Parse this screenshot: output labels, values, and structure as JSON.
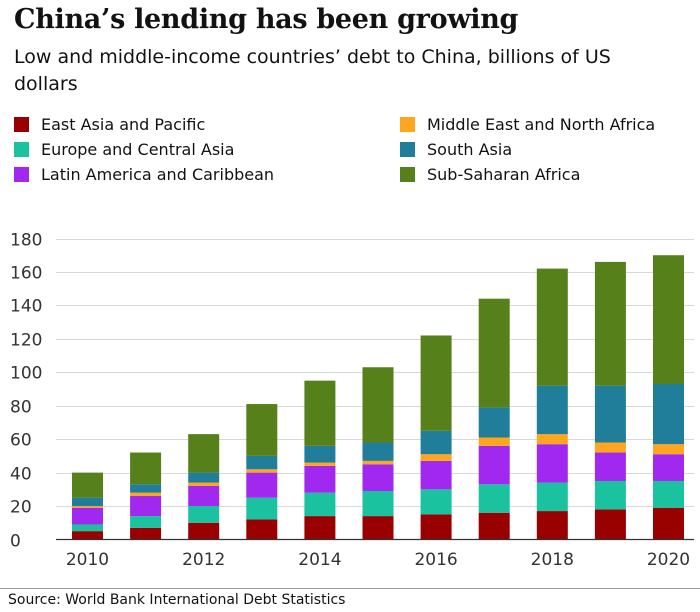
{
  "title": "China’s lending has been growing",
  "subtitle": "Low and middle-income countries’ debt to China, billions of US dollars",
  "source": "Source: World Bank International Debt Statistics",
  "chart_data": {
    "type": "bar",
    "stacked": true,
    "categories": [
      "2010",
      "2011",
      "2012",
      "2013",
      "2014",
      "2015",
      "2016",
      "2017",
      "2018",
      "2019",
      "2020"
    ],
    "x_tick_labels": [
      "2010",
      "2012",
      "2014",
      "2016",
      "2018",
      "2020"
    ],
    "y_ticks": [
      0,
      20,
      40,
      60,
      80,
      100,
      120,
      140,
      160,
      180
    ],
    "ylim": [
      0,
      180
    ],
    "grid": true,
    "legend_position": "top",
    "series": [
      {
        "name": "East Asia and Pacific",
        "color": "#990000",
        "values": [
          5,
          7,
          10,
          12,
          14,
          14,
          15,
          16,
          17,
          18,
          19
        ]
      },
      {
        "name": "Europe and Central Asia",
        "color": "#1bc2a0",
        "values": [
          4,
          7,
          10,
          13,
          14,
          15,
          15,
          17,
          17,
          17,
          16
        ]
      },
      {
        "name": "Latin America and Caribbean",
        "color": "#a128ef",
        "values": [
          10,
          12,
          12,
          15,
          16,
          16,
          17,
          23,
          23,
          17,
          16
        ]
      },
      {
        "name": "Middle East and North Africa",
        "color": "#ffa51e",
        "values": [
          1,
          2,
          2,
          2,
          2,
          2,
          4,
          5,
          6,
          6,
          6
        ]
      },
      {
        "name": "South Asia",
        "color": "#207e9b",
        "values": [
          5,
          5,
          6,
          8,
          10,
          11,
          14,
          18,
          29,
          34,
          36
        ]
      },
      {
        "name": "Sub-Saharan Africa",
        "color": "#56801a",
        "values": [
          15,
          19,
          23,
          31,
          39,
          45,
          57,
          65,
          70,
          74,
          77
        ]
      }
    ]
  },
  "legend_layout": [
    {
      "series": 0
    },
    {
      "series": 3
    },
    {
      "series": 1
    },
    {
      "series": 4
    },
    {
      "series": 2
    },
    {
      "series": 5
    }
  ]
}
